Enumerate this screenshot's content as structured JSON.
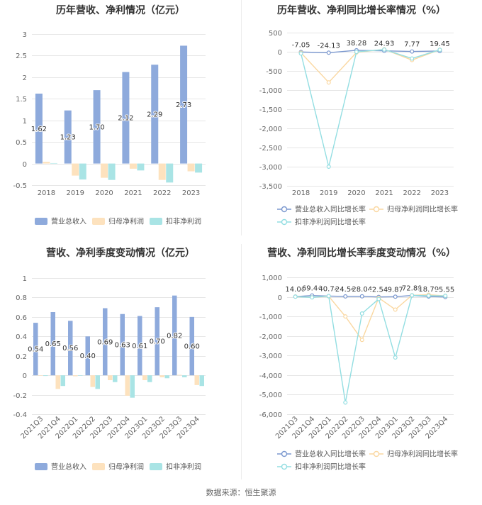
{
  "chart_data": [
    {
      "type": "bar",
      "title": "历年营收、净利情况（亿元）",
      "categories": [
        "2018",
        "2019",
        "2020",
        "2021",
        "2022",
        "2023"
      ],
      "series": [
        {
          "name": "营业总收入",
          "values": [
            1.62,
            1.23,
            1.7,
            2.12,
            2.29,
            2.73
          ],
          "color": "#8EAADC",
          "data_labels": true
        },
        {
          "name": "归母净利润",
          "values": [
            0.04,
            -0.28,
            -0.33,
            -0.12,
            -0.38,
            -0.18
          ],
          "color": "#FDE2BE",
          "data_labels": false
        },
        {
          "name": "扣非净利润",
          "values": [
            0.01,
            -0.37,
            -0.38,
            -0.16,
            -0.44,
            -0.21
          ],
          "color": "#A9E4E5",
          "data_labels": false
        }
      ],
      "ylim": [
        -0.5,
        3
      ],
      "yticks": [
        3,
        2.5,
        2,
        1.5,
        1,
        0.5,
        0,
        -0.5
      ],
      "grid": true,
      "legend": "bottom"
    },
    {
      "type": "line",
      "title": "历年营收、净利同比增长率情况（%）",
      "categories": [
        "2018",
        "2019",
        "2020",
        "2021",
        "2022",
        "2023"
      ],
      "series": [
        {
          "name": "营业总收入同比增长率",
          "values": [
            -7.05,
            -24.13,
            38.28,
            24.93,
            7.77,
            19.45
          ],
          "color": "#7B98CF",
          "data_labels": true
        },
        {
          "name": "归母净利润同比增长率",
          "values": [
            -25,
            -800,
            -18,
            64,
            -216,
            53
          ],
          "color": "#FAD7A0",
          "data_labels": false
        },
        {
          "name": "扣非净利润同比增长率",
          "values": [
            -45,
            -3000,
            -3,
            58,
            -175,
            52
          ],
          "color": "#93DEE2",
          "data_labels": false
        }
      ],
      "ylim": [
        -3500,
        500
      ],
      "yticks": [
        500,
        0,
        -500,
        -1000,
        -1500,
        -2000,
        -2500,
        -3000,
        -3500
      ],
      "grid": true,
      "legend": "bottom"
    },
    {
      "type": "bar",
      "title": "营收、净利季度变动情况（亿元）",
      "categories": [
        "2021Q3",
        "2021Q4",
        "2022Q1",
        "2022Q2",
        "2022Q3",
        "2022Q4",
        "2023Q1",
        "2023Q2",
        "2023Q3",
        "2023Q4"
      ],
      "series": [
        {
          "name": "营业总收入",
          "values": [
            0.54,
            0.65,
            0.56,
            0.4,
            0.69,
            0.63,
            0.61,
            0.7,
            0.82,
            0.6
          ],
          "color": "#8EAADC",
          "data_labels": true
        },
        {
          "name": "归母净利润",
          "values": [
            -0.002,
            -0.14,
            -0.01,
            -0.12,
            -0.05,
            -0.21,
            -0.05,
            -0.02,
            0.005,
            -0.1
          ],
          "color": "#FDE2BE",
          "data_labels": false
        },
        {
          "name": "扣非净利润",
          "values": [
            -0.007,
            -0.11,
            -0.005,
            -0.14,
            -0.07,
            -0.23,
            -0.07,
            -0.03,
            -0.02,
            -0.11
          ],
          "color": "#A9E4E5",
          "data_labels": false
        }
      ],
      "ylim": [
        -0.4,
        1
      ],
      "yticks": [
        1,
        0.8,
        0.6,
        0.4,
        0.2,
        0,
        -0.2,
        -0.4
      ],
      "grid": true,
      "legend": "bottom"
    },
    {
      "type": "line",
      "title": "营收、净利同比增长率季度变动情况（%）",
      "categories": [
        "2021Q3",
        "2021Q4",
        "2022Q1",
        "2022Q2",
        "2022Q3",
        "2022Q4",
        "2023Q1",
        "2023Q2",
        "2023Q3",
        "2023Q4"
      ],
      "series": [
        {
          "name": "营业总收入同比增长率",
          "values": [
            14.0,
            69.44,
            40.78,
            24.56,
            28.04,
            -2.54,
            9.87,
            72.89,
            18.79,
            -5.55
          ],
          "color": "#7B98CF",
          "data_labels": true
        },
        {
          "name": "归母净利润同比增长率",
          "values": [
            15,
            -20,
            30,
            -1000,
            -2200,
            -50,
            -650,
            83,
            110,
            52
          ],
          "color": "#FAD7A0",
          "data_labels": false
        },
        {
          "name": "扣非净利润同比增长率",
          "values": [
            10,
            -25,
            40,
            -5400,
            -850,
            -109,
            -3100,
            79,
            60,
            52
          ],
          "color": "#93DEE2",
          "data_labels": false
        }
      ],
      "ylim": [
        -6000,
        1000
      ],
      "yticks": [
        1000,
        0,
        -1000,
        -2000,
        -3000,
        -4000,
        -5000,
        -6000
      ],
      "grid": true,
      "legend": "bottom"
    }
  ],
  "footer": {
    "source": "数据来源：恒生聚源"
  }
}
